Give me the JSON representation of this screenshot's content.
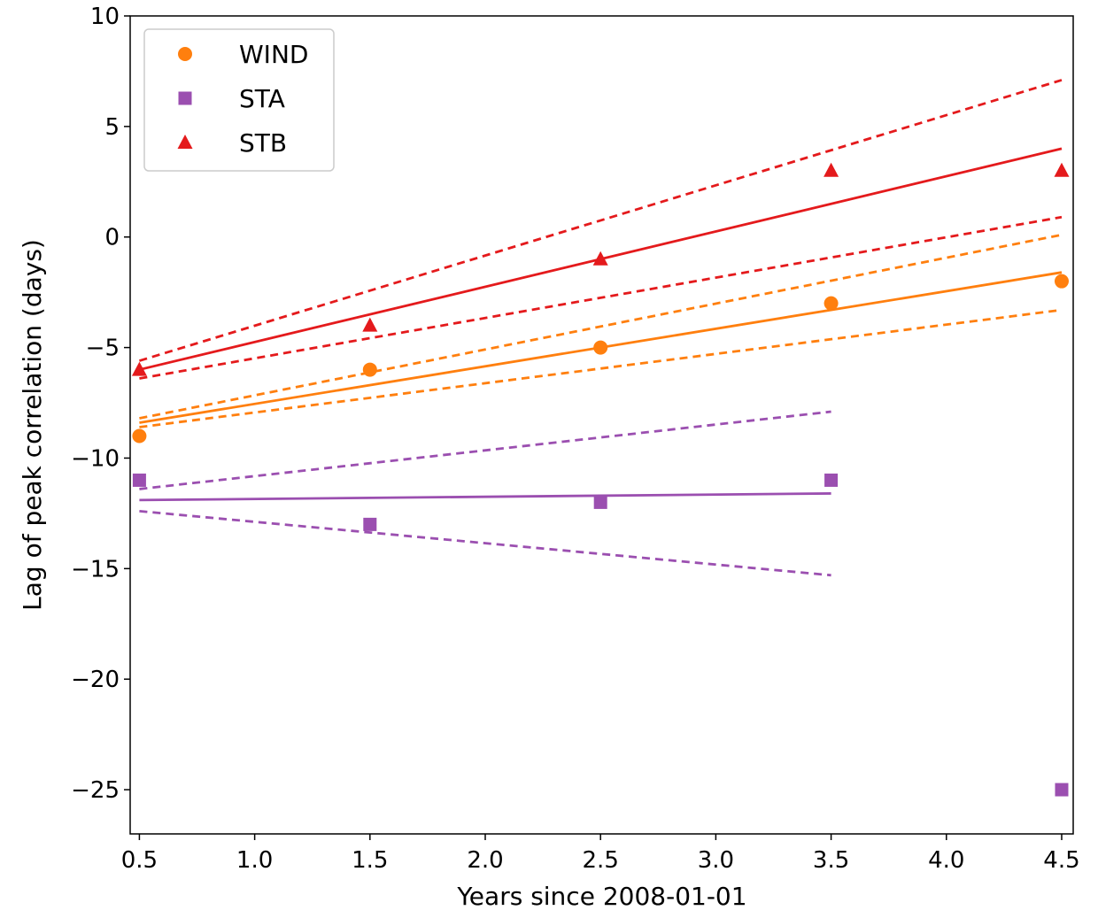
{
  "chart_data": {
    "type": "scatter",
    "xlabel": "Years since 2008-01-01",
    "ylabel": "Lag of peak correlation (days)",
    "xlim": [
      0.46,
      4.55
    ],
    "ylim": [
      -27,
      10
    ],
    "xticks": [
      0.5,
      {
        "value": 1.0,
        "label": "1.0"
      },
      1.5,
      {
        "value": 2.0,
        "label": "2.0"
      },
      2.5,
      {
        "value": 3.0,
        "label": "3.0"
      },
      3.5,
      {
        "value": 4.0,
        "label": "4.0"
      },
      4.5
    ],
    "yticks": [
      {
        "value": -25,
        "label": "−25"
      },
      {
        "value": -20,
        "label": "−20"
      },
      {
        "value": -15,
        "label": "−15"
      },
      {
        "value": -10,
        "label": "−10"
      },
      {
        "value": -5,
        "label": "−5"
      },
      0,
      5,
      10
    ],
    "legend": "upper left",
    "series": [
      {
        "name": "WIND",
        "color": "#ff7f0e",
        "marker": "circle",
        "x": [
          0.5,
          1.5,
          2.5,
          3.5,
          4.5
        ],
        "values": [
          -9,
          -6,
          -5,
          -3,
          -2
        ],
        "fit": {
          "x": [
            0.5,
            4.5
          ],
          "values": [
            -8.4,
            -1.6
          ],
          "upper": [
            -8.2,
            0.1
          ],
          "lower": [
            -8.6,
            -3.3
          ]
        }
      },
      {
        "name": "STA",
        "color": "#9b4fb0",
        "marker": "square",
        "x": [
          0.5,
          1.5,
          2.5,
          3.5,
          4.5
        ],
        "values": [
          -11,
          -13,
          -12,
          -11,
          -25
        ],
        "fit": {
          "x": [
            0.5,
            3.5
          ],
          "values": [
            -11.9,
            -11.6
          ],
          "upper": [
            -11.4,
            -7.9
          ],
          "lower": [
            -12.4,
            -15.3
          ]
        }
      },
      {
        "name": "STB",
        "color": "#e41a1c",
        "marker": "triangle",
        "x": [
          0.5,
          1.5,
          2.5,
          3.5,
          4.5
        ],
        "values": [
          -6,
          -4,
          -1,
          3,
          3
        ],
        "fit": {
          "x": [
            0.5,
            4.5
          ],
          "values": [
            -6.0,
            4.0
          ],
          "upper": [
            -5.6,
            7.1
          ],
          "lower": [
            -6.4,
            0.9
          ]
        }
      }
    ]
  }
}
